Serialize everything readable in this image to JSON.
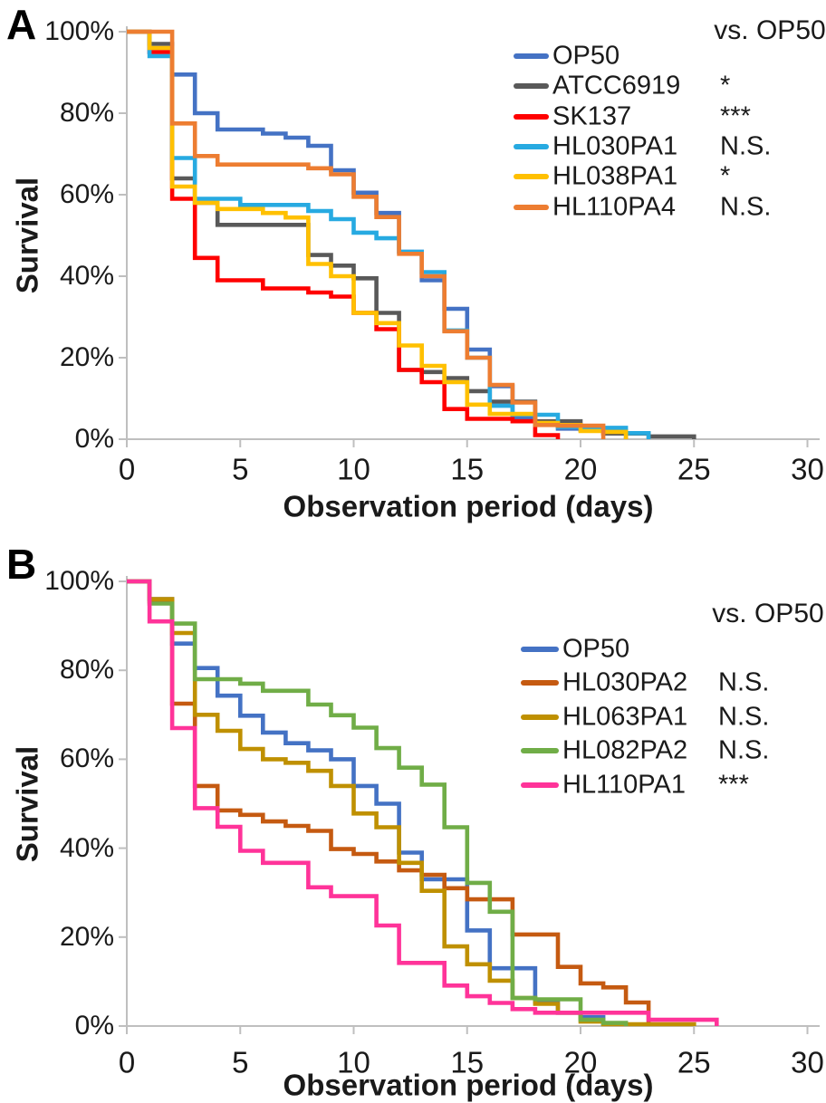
{
  "figure_type": "kaplan-meier-survival-figure",
  "text_color": "#1a1a1a",
  "axis_color": "#bfbfbf",
  "background": "#ffffff",
  "chart_data": [
    {
      "type": "line",
      "step": true,
      "panel_label": "A",
      "legend_title": "vs. OP50",
      "xlabel": "Observation period (days)",
      "ylabel": "Survival",
      "xlim": [
        0,
        30
      ],
      "ylim": [
        0,
        100
      ],
      "x_ticks": [
        0,
        5,
        10,
        15,
        20,
        25,
        30
      ],
      "y_tick_labels": [
        "100%",
        "80%",
        "60%",
        "40%",
        "20%",
        "0%"
      ],
      "legend_position": "upper right",
      "grid": false,
      "series": [
        {
          "name": "OP50",
          "color": "#4472C4",
          "significance_vs_op50": "",
          "points": [
            [
              0,
              100
            ],
            [
              1,
              95
            ],
            [
              2,
              89.5
            ],
            [
              3,
              80
            ],
            [
              4,
              76
            ],
            [
              6,
              75
            ],
            [
              7,
              74
            ],
            [
              8,
              72
            ],
            [
              9,
              66
            ],
            [
              10,
              60.5
            ],
            [
              11,
              55.5
            ],
            [
              12,
              46
            ],
            [
              13,
              39
            ],
            [
              14,
              32
            ],
            [
              15,
              22
            ],
            [
              16,
              13
            ],
            [
              17,
              5.2
            ],
            [
              18,
              3.7
            ],
            [
              19,
              2.6
            ],
            [
              21,
              2
            ],
            [
              22,
              0
            ]
          ]
        },
        {
          "name": "ATCC6919",
          "color": "#595959",
          "significance_vs_op50": "*",
          "points": [
            [
              0,
              100
            ],
            [
              1,
              97
            ],
            [
              2,
              64
            ],
            [
              3,
              58
            ],
            [
              4,
              52.6
            ],
            [
              8,
              45.2
            ],
            [
              9,
              42.6
            ],
            [
              10,
              39.5
            ],
            [
              11,
              31
            ],
            [
              12,
              17
            ],
            [
              13,
              16.5
            ],
            [
              14,
              15
            ],
            [
              15,
              11.8
            ],
            [
              16,
              9.2
            ],
            [
              18,
              4.4
            ],
            [
              20,
              2.3
            ],
            [
              21,
              1.4
            ],
            [
              23,
              0.7
            ],
            [
              25,
              0
            ]
          ]
        },
        {
          "name": "SK137",
          "color": "#FF0000",
          "significance_vs_op50": "***",
          "points": [
            [
              0,
              100
            ],
            [
              1,
              95
            ],
            [
              2,
              59
            ],
            [
              3,
              44.5
            ],
            [
              4,
              39
            ],
            [
              6,
              37
            ],
            [
              8,
              36
            ],
            [
              9,
              35
            ],
            [
              10,
              31
            ],
            [
              11,
              27
            ],
            [
              12,
              17
            ],
            [
              13,
              14
            ],
            [
              14,
              7.4
            ],
            [
              15,
              5
            ],
            [
              17,
              4.4
            ],
            [
              18,
              1
            ],
            [
              19,
              0
            ]
          ]
        },
        {
          "name": "HL030PA1",
          "color": "#27AAE1",
          "significance_vs_op50": "N.S.",
          "points": [
            [
              0,
              100
            ],
            [
              1,
              94
            ],
            [
              2,
              69
            ],
            [
              3,
              59
            ],
            [
              5,
              57.5
            ],
            [
              8,
              56
            ],
            [
              9,
              54
            ],
            [
              10,
              50.7
            ],
            [
              11,
              49.3
            ],
            [
              12,
              46
            ],
            [
              13,
              41
            ],
            [
              14,
              26.7
            ],
            [
              15,
              20
            ],
            [
              16,
              8.2
            ],
            [
              17,
              6
            ],
            [
              19,
              3
            ],
            [
              20,
              2.8
            ],
            [
              22,
              1.5
            ],
            [
              23,
              0
            ]
          ]
        },
        {
          "name": "HL038PA1",
          "color": "#FFC000",
          "significance_vs_op50": "*",
          "points": [
            [
              0,
              100
            ],
            [
              1,
              96
            ],
            [
              2,
              62
            ],
            [
              3,
              58
            ],
            [
              4,
              56.5
            ],
            [
              6,
              55.5
            ],
            [
              7,
              54.4
            ],
            [
              8,
              43
            ],
            [
              9,
              40
            ],
            [
              10,
              31
            ],
            [
              11,
              28.5
            ],
            [
              12,
              23
            ],
            [
              13,
              18
            ],
            [
              14,
              14
            ],
            [
              15,
              8.5
            ],
            [
              16,
              6.2
            ],
            [
              18,
              4
            ],
            [
              19,
              3.5
            ],
            [
              20,
              2
            ],
            [
              21,
              1.8
            ],
            [
              22,
              0
            ]
          ]
        },
        {
          "name": "HL110PA4",
          "color": "#ED7D31",
          "significance_vs_op50": "N.S.",
          "points": [
            [
              0,
              100
            ],
            [
              2,
              77.5
            ],
            [
              3,
              69.5
            ],
            [
              4,
              67.4
            ],
            [
              8,
              66.5
            ],
            [
              9,
              65
            ],
            [
              10,
              59.5
            ],
            [
              11,
              54.5
            ],
            [
              12,
              45.5
            ],
            [
              13,
              40
            ],
            [
              14,
              26.5
            ],
            [
              15,
              20
            ],
            [
              16,
              13.3
            ],
            [
              17,
              9
            ],
            [
              18,
              3.5
            ],
            [
              19,
              3.3
            ],
            [
              21,
              0
            ]
          ]
        }
      ]
    },
    {
      "type": "line",
      "step": true,
      "panel_label": "B",
      "legend_title": "vs. OP50",
      "xlabel": "Observation period (days)",
      "ylabel": "Survival",
      "xlim": [
        0,
        30
      ],
      "ylim": [
        0,
        100
      ],
      "x_ticks": [
        0,
        5,
        10,
        15,
        20,
        25,
        30
      ],
      "y_tick_labels": [
        "100%",
        "80%",
        "60%",
        "40%",
        "20%",
        "0%"
      ],
      "legend_position": "upper right",
      "grid": false,
      "series": [
        {
          "name": "OP50",
          "color": "#4472C4",
          "significance_vs_op50": "",
          "points": [
            [
              0,
              100
            ],
            [
              1,
              96
            ],
            [
              2,
              86
            ],
            [
              3,
              80.5
            ],
            [
              4,
              74.3
            ],
            [
              5,
              69.8
            ],
            [
              6,
              66
            ],
            [
              7,
              63.6
            ],
            [
              8,
              62
            ],
            [
              9,
              60
            ],
            [
              10,
              54
            ],
            [
              11,
              50
            ],
            [
              12,
              39
            ],
            [
              13,
              33
            ],
            [
              15,
              21.5
            ],
            [
              16,
              13
            ],
            [
              18,
              5.5
            ],
            [
              19,
              3
            ],
            [
              20,
              2
            ],
            [
              21,
              0
            ]
          ]
        },
        {
          "name": "HL030PA2",
          "color": "#C55A11",
          "significance_vs_op50": "N.S.",
          "points": [
            [
              0,
              100
            ],
            [
              1,
              95.5
            ],
            [
              2,
              72.5
            ],
            [
              3,
              54
            ],
            [
              4,
              48.5
            ],
            [
              5,
              47.5
            ],
            [
              6,
              46
            ],
            [
              7,
              45
            ],
            [
              8,
              43.9
            ],
            [
              9,
              39.8
            ],
            [
              10,
              38.7
            ],
            [
              11,
              37
            ],
            [
              12,
              35
            ],
            [
              13,
              34
            ],
            [
              14,
              31
            ],
            [
              15,
              28.5
            ],
            [
              17,
              20.6
            ],
            [
              19,
              13.3
            ],
            [
              20,
              9.6
            ],
            [
              21,
              8.7
            ],
            [
              22,
              5.3
            ],
            [
              23,
              0
            ]
          ]
        },
        {
          "name": "HL063PA1",
          "color": "#BF9000",
          "significance_vs_op50": "N.S.",
          "points": [
            [
              0,
              100
            ],
            [
              1,
              96
            ],
            [
              2,
              88.4
            ],
            [
              3,
              70
            ],
            [
              4,
              66.4
            ],
            [
              5,
              62.3
            ],
            [
              6,
              60
            ],
            [
              7,
              59.2
            ],
            [
              8,
              57.4
            ],
            [
              9,
              54
            ],
            [
              10,
              47.8
            ],
            [
              11,
              44.7
            ],
            [
              12,
              36.7
            ],
            [
              13,
              30.4
            ],
            [
              14,
              17.9
            ],
            [
              15,
              13.9
            ],
            [
              16,
              10.2
            ],
            [
              17,
              6.3
            ],
            [
              18,
              5
            ],
            [
              19,
              3
            ],
            [
              20,
              1
            ],
            [
              21,
              0.4
            ],
            [
              25,
              0
            ]
          ]
        },
        {
          "name": "HL082PA2",
          "color": "#70AD47",
          "significance_vs_op50": "N.S.",
          "points": [
            [
              0,
              100
            ],
            [
              1,
              95
            ],
            [
              2,
              90.5
            ],
            [
              3,
              78
            ],
            [
              5,
              77
            ],
            [
              6,
              75.4
            ],
            [
              8,
              72.3
            ],
            [
              9,
              69.9
            ],
            [
              10,
              67.1
            ],
            [
              11,
              62.5
            ],
            [
              12,
              58.1
            ],
            [
              13,
              54.3
            ],
            [
              14,
              44.7
            ],
            [
              15,
              32.2
            ],
            [
              16,
              25.7
            ],
            [
              17,
              6.3
            ],
            [
              18,
              6
            ],
            [
              20,
              1.4
            ],
            [
              21,
              0.7
            ],
            [
              22,
              0
            ]
          ]
        },
        {
          "name": "HL110PA1",
          "color": "#FF3399",
          "significance_vs_op50": "***",
          "points": [
            [
              0,
              100
            ],
            [
              1,
              91
            ],
            [
              2,
              67
            ],
            [
              3,
              49
            ],
            [
              4,
              44.8
            ],
            [
              5,
              39.4
            ],
            [
              6,
              36.7
            ],
            [
              8,
              31.2
            ],
            [
              9,
              29.2
            ],
            [
              11,
              22.6
            ],
            [
              12,
              14.2
            ],
            [
              14,
              9.1
            ],
            [
              15,
              6.7
            ],
            [
              16,
              5.2
            ],
            [
              17,
              3.8
            ],
            [
              18,
              3
            ],
            [
              23,
              1.4
            ],
            [
              26,
              0
            ]
          ]
        }
      ]
    }
  ]
}
